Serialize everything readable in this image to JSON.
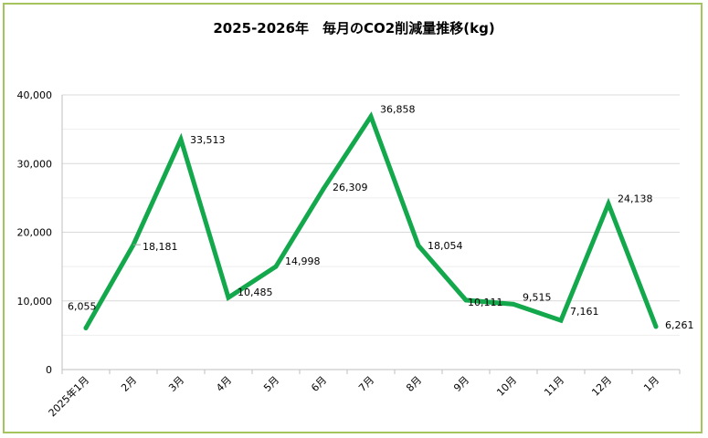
{
  "chart_data": {
    "type": "line",
    "title": "2025-2026年　毎月のCO2削減量推移(kg)",
    "categories": [
      "2025年1月",
      "2月",
      "3月",
      "4月",
      "5月",
      "6月",
      "7月",
      "8月",
      "9月",
      "10月",
      "11月",
      "12月",
      "1月"
    ],
    "series": [
      {
        "values": [
          6055,
          18181,
          33513,
          10485,
          14998,
          26309,
          36858,
          18054,
          10111,
          9515,
          7161,
          24138,
          6261
        ],
        "labels": [
          "6,055",
          "18,181",
          "33,513",
          "10,485",
          "14,998",
          "26,309",
          "36,858",
          "18,054",
          "10,111",
          "9,515",
          "7,161",
          "24,138",
          "6,261"
        ]
      }
    ],
    "ylim": [
      0,
      40000
    ],
    "yticks": [
      0,
      10000,
      20000,
      30000,
      40000
    ],
    "ytick_labels": [
      "0",
      "10,000",
      "20,000",
      "30,000",
      "40,000"
    ],
    "grid": true,
    "xlabel": "",
    "ylabel": "",
    "colors": {
      "line": "#13a84c",
      "frame": "#a5c45e",
      "grid": "#d9d9d9"
    }
  }
}
